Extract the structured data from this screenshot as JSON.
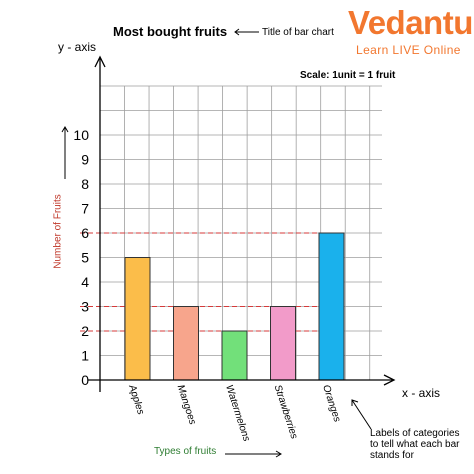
{
  "logo": {
    "name": "Vedantu",
    "tagline": "Learn LIVE Online"
  },
  "annotations": {
    "title_pointer": "Title of bar chart",
    "y_axis_name": "y - axis",
    "x_axis_name": "x - axis",
    "scale": "Scale: 1unit = 1 fruit",
    "category_labels": "Labels of categories to tell what each bar stands for"
  },
  "colors": {
    "grid": "#9e9e9e",
    "reference_lines": "#d63a3a",
    "ylabel": "#c0392b",
    "xlabel": "#2e7d32",
    "logo": "#f2772f"
  },
  "chart_data": {
    "type": "bar",
    "title": "Most bought fruits",
    "xlabel": "Types of fruits",
    "ylabel": "Number of Fruits",
    "categories": [
      "Apples",
      "Mangoes",
      "Watermelons",
      "Strawberries",
      "Oranges"
    ],
    "values": [
      5,
      3,
      2,
      3,
      6
    ],
    "bar_colors": [
      "#fbbd4a",
      "#f7a58c",
      "#72e07a",
      "#f29bc9",
      "#1ab1ec"
    ],
    "ylim": [
      0,
      10
    ],
    "yticks": [
      0,
      1,
      2,
      3,
      4,
      5,
      6,
      7,
      8,
      9,
      10
    ],
    "grid": true,
    "reference_lines_at": [
      2,
      3,
      6
    ]
  }
}
